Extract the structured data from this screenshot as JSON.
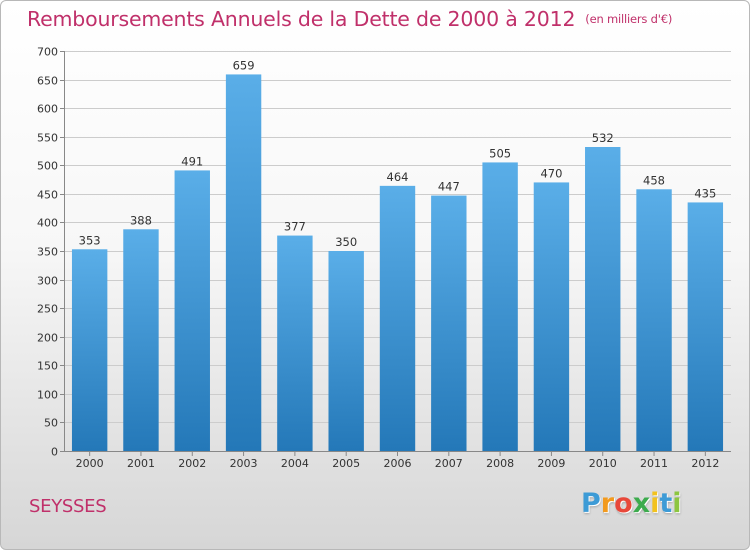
{
  "header": {
    "title": "Remboursements Annuels de la Dette de 2000 à 2012",
    "unit": "(en milliers d'€)"
  },
  "footer": {
    "commune": "SEYSSES",
    "logo_letters": [
      {
        "ch": "P",
        "color": "#3d9bd6"
      },
      {
        "ch": "r",
        "color": "#f29a1e"
      },
      {
        "ch": "o",
        "color": "#e8483a"
      },
      {
        "ch": "x",
        "color": "#3cab4d"
      },
      {
        "ch": "i",
        "color": "#f2c21e"
      },
      {
        "ch": "t",
        "color": "#3d9bd6"
      },
      {
        "ch": "i",
        "color": "#8cc63f"
      }
    ]
  },
  "colors": {
    "bar_top": "#5aaee8",
    "bar_bottom": "#2478b8",
    "title": "#c0306a",
    "grid": "#cccccc"
  },
  "chart_data": {
    "type": "bar",
    "title": "Remboursements Annuels de la Dette de 2000 à 2012",
    "categories": [
      "2000",
      "2001",
      "2002",
      "2003",
      "2004",
      "2005",
      "2006",
      "2007",
      "2008",
      "2009",
      "2010",
      "2011",
      "2012"
    ],
    "values": [
      353,
      388,
      491,
      659,
      377,
      350,
      464,
      447,
      505,
      470,
      532,
      458,
      435
    ],
    "xlabel": "",
    "ylabel": "",
    "ylim": [
      0,
      700
    ],
    "ytick_step": 50,
    "grid": true,
    "legend": "none"
  }
}
